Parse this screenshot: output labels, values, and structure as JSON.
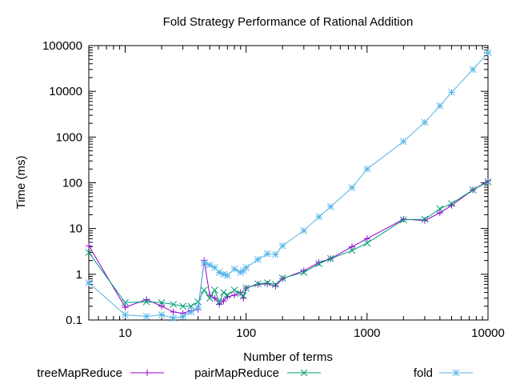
{
  "chart_data": {
    "type": "line",
    "title": "Fold Strategy Performance of Rational Addition",
    "xlabel": "Number of terms",
    "ylabel": "Time (ms)",
    "xscale": "log",
    "yscale": "log",
    "xlim": [
      5,
      10000
    ],
    "ylim": [
      0.1,
      100000
    ],
    "x_ticks": [
      10,
      100,
      1000,
      10000
    ],
    "x_tick_labels": [
      "10",
      "100",
      "1000",
      "10000"
    ],
    "y_ticks": [
      0.1,
      1,
      10,
      100,
      1000,
      10000,
      100000
    ],
    "y_tick_labels": [
      "0.1",
      "1",
      "10",
      "100",
      "1000",
      "10000",
      "100000"
    ],
    "grid": false,
    "legend_position": "bottom",
    "series": [
      {
        "name": "treeMapReduce",
        "color": "#9400d3",
        "marker": "plus",
        "x": [
          5,
          10,
          15,
          20,
          25,
          30,
          35,
          40,
          45,
          50,
          55,
          60,
          65,
          70,
          80,
          90,
          95,
          100,
          125,
          150,
          175,
          200,
          300,
          400,
          500,
          750,
          1000,
          2000,
          3000,
          4000,
          5000,
          7500,
          10000
        ],
        "y": [
          4.2,
          0.19,
          0.28,
          0.2,
          0.15,
          0.14,
          0.16,
          0.17,
          2.0,
          0.35,
          0.3,
          0.22,
          0.26,
          0.32,
          0.35,
          0.4,
          0.3,
          0.5,
          0.6,
          0.62,
          0.55,
          0.8,
          1.2,
          1.8,
          2.2,
          4.0,
          6.0,
          16.0,
          15.0,
          22.0,
          32.0,
          70.0,
          110.0
        ]
      },
      {
        "name": "pairMapReduce",
        "color": "#009e73",
        "marker": "cross",
        "x": [
          5,
          10,
          15,
          20,
          25,
          30,
          35,
          40,
          45,
          50,
          55,
          60,
          65,
          70,
          80,
          90,
          95,
          100,
          125,
          150,
          175,
          200,
          300,
          400,
          500,
          750,
          1000,
          2000,
          3000,
          4000,
          5000,
          7500,
          10000
        ],
        "y": [
          3.0,
          0.24,
          0.25,
          0.24,
          0.22,
          0.2,
          0.2,
          0.25,
          0.45,
          0.3,
          0.45,
          0.25,
          0.4,
          0.35,
          0.45,
          0.38,
          0.34,
          0.5,
          0.62,
          0.65,
          0.6,
          0.82,
          1.1,
          1.7,
          2.2,
          3.3,
          4.8,
          15.5,
          16.0,
          27.0,
          35.0,
          70.0,
          105.0
        ]
      },
      {
        "name": "fold",
        "color": "#56b4e9",
        "marker": "star",
        "x": [
          5,
          10,
          15,
          20,
          25,
          30,
          35,
          40,
          45,
          50,
          55,
          60,
          65,
          70,
          80,
          90,
          95,
          100,
          125,
          150,
          175,
          200,
          300,
          400,
          500,
          750,
          1000,
          2000,
          3000,
          4000,
          5000,
          7500,
          10000
        ],
        "y": [
          0.65,
          0.13,
          0.12,
          0.13,
          0.11,
          0.12,
          0.15,
          0.19,
          1.8,
          1.6,
          1.4,
          1.1,
          1.0,
          0.95,
          1.3,
          1.1,
          1.2,
          1.4,
          2.1,
          2.8,
          2.7,
          4.2,
          9.0,
          18.0,
          30.0,
          78.0,
          200.0,
          800.0,
          2100.0,
          4800.0,
          9500.0,
          30000.0,
          70000.0
        ]
      }
    ]
  }
}
